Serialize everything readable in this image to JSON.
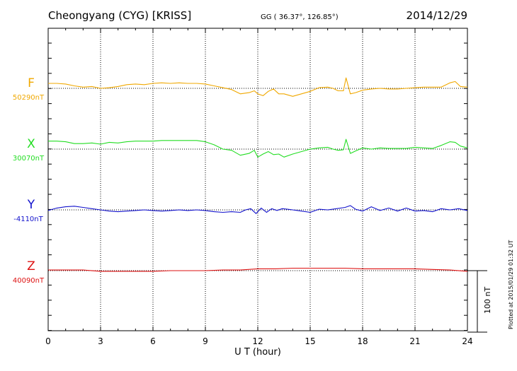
{
  "header": {
    "station": "Cheongyang (CYG)  [KRISS]",
    "coords": "GG ( 36.37°, 126.85°)",
    "date": "2014/12/29"
  },
  "side_note": "Plotted at 2015/01/29 01:32 UT",
  "scale_bar_label": "100 nT",
  "chart_data": {
    "type": "line",
    "title": "Cheongyang (CYG)  [KRISS]",
    "xlabel": "U T (hour)",
    "xlim": [
      0,
      24
    ],
    "xticks": [
      "0",
      "3",
      "6",
      "9",
      "12",
      "15",
      "18",
      "21",
      "24"
    ],
    "grid": "dotted vertical every 3 h; dotted baseline per channel",
    "scale_nT": 100,
    "series": [
      {
        "name": "F",
        "baseline_label": "50290nT",
        "baseline": 50290,
        "color": "#f0a800",
        "x": [
          0,
          0.5,
          1,
          1.5,
          2,
          2.5,
          3,
          3.5,
          4,
          4.5,
          5,
          5.5,
          6,
          6.5,
          7,
          7.5,
          8,
          8.5,
          9,
          9.5,
          10,
          10.5,
          11,
          11.5,
          11.8,
          12,
          12.3,
          12.6,
          12.9,
          13.2,
          13.5,
          14,
          14.5,
          15,
          15.5,
          16,
          16.3,
          16.6,
          16.9,
          17.05,
          17.3,
          17.6,
          18,
          18.5,
          19,
          19.5,
          20,
          20.5,
          21,
          21.5,
          22,
          22.5,
          23,
          23.3,
          23.6,
          24
        ],
        "values": [
          50298,
          50298,
          50297,
          50294,
          50292,
          50293,
          50290,
          50291,
          50293,
          50296,
          50297,
          50296,
          50298,
          50299,
          50298,
          50299,
          50298,
          50298,
          50297,
          50294,
          50291,
          50288,
          50281,
          50283,
          50286,
          50281,
          50278,
          50285,
          50289,
          50281,
          50281,
          50277,
          50281,
          50285,
          50291,
          50292,
          50290,
          50286,
          50286,
          50307,
          50281,
          50283,
          50287,
          50289,
          50290,
          50289,
          50289,
          50290,
          50291,
          50292,
          50292,
          50292,
          50299,
          50301,
          50293,
          50292
        ]
      },
      {
        "name": "X",
        "baseline_label": "30070nT",
        "baseline": 30070,
        "color": "#22dd22",
        "x": [
          0,
          0.5,
          1,
          1.5,
          2,
          2.5,
          3,
          3.5,
          4,
          4.5,
          5,
          5.5,
          6,
          6.5,
          7,
          7.5,
          8,
          8.5,
          9,
          9.5,
          10,
          10.5,
          11,
          11.5,
          11.8,
          12,
          12.3,
          12.6,
          12.9,
          13.2,
          13.5,
          14,
          14.5,
          15,
          15.5,
          16,
          16.3,
          16.6,
          16.9,
          17.05,
          17.3,
          17.6,
          18,
          18.5,
          19,
          19.5,
          20,
          20.5,
          21,
          21.5,
          22,
          22.5,
          23,
          23.3,
          23.6,
          24
        ],
        "values": [
          30083,
          30083,
          30082,
          30079,
          30079,
          30080,
          30078,
          30081,
          30080,
          30082,
          30083,
          30083,
          30083,
          30084,
          30084,
          30084,
          30084,
          30084,
          30082,
          30077,
          30070,
          30068,
          30060,
          30063,
          30068,
          30057,
          30062,
          30066,
          30061,
          30062,
          30057,
          30062,
          30066,
          30070,
          30072,
          30073,
          30070,
          30068,
          30069,
          30086,
          30063,
          30067,
          30072,
          30070,
          30072,
          30071,
          30071,
          30071,
          30073,
          30072,
          30071,
          30076,
          30082,
          30081,
          30075,
          30072
        ]
      },
      {
        "name": "Y",
        "baseline_label": "-4110nT",
        "baseline": -4110,
        "color": "#1111cc",
        "x": [
          0,
          0.5,
          1,
          1.5,
          2,
          2.5,
          3,
          3.5,
          4,
          4.5,
          5,
          5.5,
          6,
          6.5,
          7,
          7.5,
          8,
          8.5,
          9,
          9.5,
          10,
          10.5,
          11,
          11.3,
          11.6,
          11.9,
          12.2,
          12.5,
          12.8,
          13.1,
          13.4,
          13.7,
          14,
          14.5,
          15,
          15.5,
          16,
          16.5,
          17,
          17.3,
          17.6,
          18,
          18.5,
          19,
          19.5,
          20,
          20.5,
          21,
          21.5,
          22,
          22.5,
          23,
          23.5,
          24
        ],
        "values": [
          -4111,
          -4107,
          -4105,
          -4104,
          -4106,
          -4108,
          -4110,
          -4112,
          -4113,
          -4112,
          -4111,
          -4110,
          -4111,
          -4112,
          -4111,
          -4110,
          -4111,
          -4110,
          -4111,
          -4113,
          -4114,
          -4113,
          -4114,
          -4110,
          -4108,
          -4116,
          -4107,
          -4114,
          -4108,
          -4111,
          -4108,
          -4109,
          -4110,
          -4112,
          -4114,
          -4109,
          -4110,
          -4108,
          -4106,
          -4103,
          -4109,
          -4112,
          -4105,
          -4111,
          -4107,
          -4112,
          -4107,
          -4112,
          -4111,
          -4113,
          -4108,
          -4110,
          -4108,
          -4111
        ]
      },
      {
        "name": "Z",
        "baseline_label": "40090nT",
        "baseline": 40090,
        "color": "#dd1111",
        "x": [
          0,
          1,
          2,
          3,
          4,
          5,
          6,
          7,
          8,
          9,
          10,
          11,
          12,
          13,
          14,
          15,
          16,
          17,
          18,
          19,
          20,
          21,
          22,
          23,
          24
        ],
        "values": [
          40091,
          40091,
          40091,
          40089,
          40089,
          40089,
          40089,
          40090,
          40090,
          40090,
          40091,
          40091,
          40093,
          40093,
          40094,
          40094,
          40094,
          40094,
          40093,
          40093,
          40093,
          40093,
          40092,
          40091,
          40089
        ]
      }
    ]
  }
}
